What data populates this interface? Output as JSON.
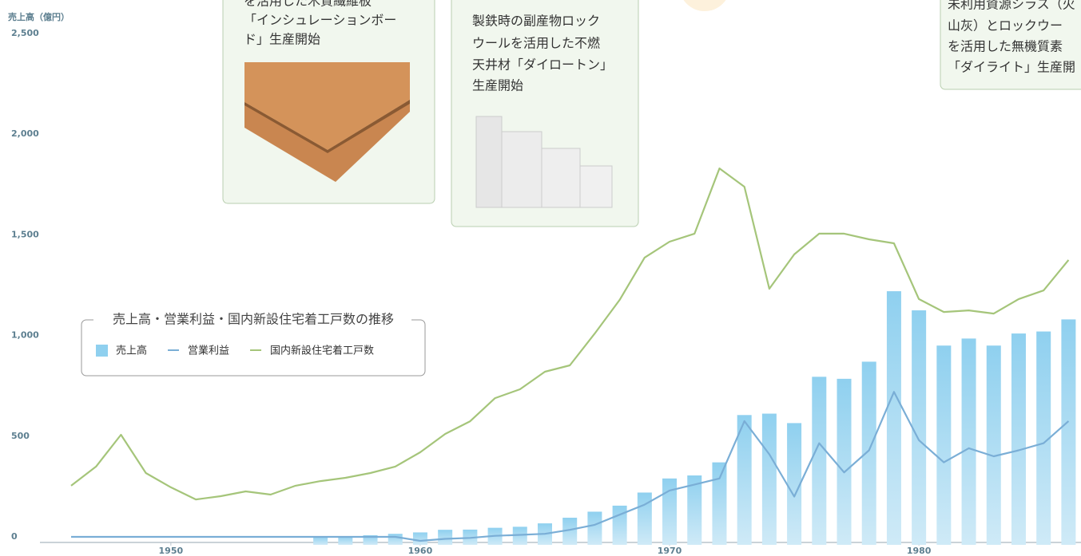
{
  "chart_data": {
    "type": "combo",
    "y_label": "売上高（億円）",
    "legend_title": "売上高・営業利益・国内新設住宅着工戸数の推移",
    "x": [
      1946,
      1947,
      1948,
      1949,
      1950,
      1951,
      1952,
      1953,
      1954,
      1955,
      1956,
      1957,
      1958,
      1959,
      1960,
      1961,
      1962,
      1963,
      1964,
      1965,
      1966,
      1967,
      1968,
      1969,
      1970,
      1971,
      1972,
      1973,
      1974,
      1975,
      1976,
      1977,
      1978,
      1979,
      1980,
      1981,
      1982,
      1983,
      1984,
      1985,
      1986
    ],
    "series": [
      {
        "name": "売上高",
        "type": "bar",
        "color": "#8fd0ef",
        "values": [
          null,
          null,
          null,
          null,
          null,
          null,
          null,
          null,
          null,
          null,
          2,
          3,
          8,
          15,
          22,
          35,
          36,
          45,
          50,
          67,
          95,
          125,
          155,
          220,
          290,
          305,
          370,
          605,
          612,
          565,
          795,
          785,
          870,
          1220,
          1125,
          950,
          985,
          950,
          1010,
          1020,
          1080
        ]
      },
      {
        "name": "営業利益",
        "type": "line",
        "color": "#7aaed6",
        "values": [
          0,
          0,
          0,
          0,
          0,
          0,
          0,
          0,
          0,
          0,
          0,
          0,
          0,
          0,
          -20,
          -10,
          -5,
          5,
          10,
          15,
          35,
          60,
          110,
          160,
          230,
          260,
          290,
          575,
          410,
          200,
          465,
          320,
          430,
          720,
          480,
          370,
          440,
          400,
          430,
          465,
          575
        ]
      },
      {
        "name": "国内新設住宅着工戸数",
        "type": "line",
        "color": "#a5c57a",
        "values": [
          254,
          349,
          507,
          317,
          246,
          186,
          202,
          226,
          210,
          254,
          277,
          293,
          317,
          349,
          420,
          511,
          574,
          689,
          733,
          820,
          852,
          1010,
          1177,
          1387,
          1466,
          1506,
          1830,
          1739,
          1232,
          1403,
          1506,
          1506,
          1478,
          1458,
          1181,
          1117,
          1125,
          1109,
          1181,
          1224,
          1375
        ]
      }
    ],
    "xlim": [
      1944.75,
      1986.5
    ],
    "xticks": [
      1950,
      1960,
      1970,
      1980
    ],
    "ylim": [
      0,
      2500
    ],
    "yticks": [
      0,
      {
        "value": 500,
        "label": "500"
      },
      {
        "value": 1000,
        "label": "1,000"
      },
      {
        "value": 1500,
        "label": "1,500"
      },
      {
        "value": 2000,
        "label": "2,000"
      },
      {
        "value": 2500,
        "label": "2,500"
      }
    ]
  },
  "callouts": [
    {
      "lines": [
        "を活用した木質繊維板",
        "「インシュレーションボー",
        "ド」生産開始"
      ]
    },
    {
      "lines": [
        "製鉄時の副産物ロック",
        "ウールを活用した不燃",
        "天井材「ダイロートン」",
        "生産開始"
      ]
    },
    {
      "lines": [
        "未利用資源シラス（火",
        "山灰）とロックウー",
        "を活用した無機質素",
        "「ダイライト」生産開"
      ]
    }
  ]
}
